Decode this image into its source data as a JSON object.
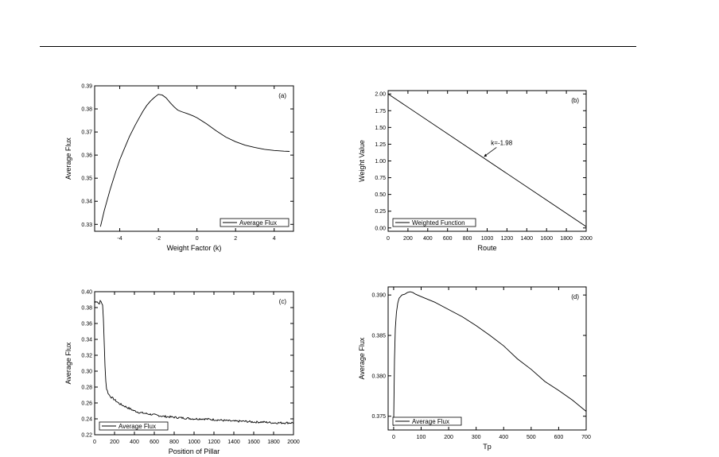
{
  "chart_data": [
    {
      "id": "a",
      "type": "line",
      "panel_label": "(a)",
      "xlabel": "Weight Factor (k)",
      "ylabel": "Average Flux",
      "xlim": [
        -5.3,
        5.0
      ],
      "ylim": [
        0.327,
        0.39
      ],
      "xticks": [
        -4,
        -2,
        0,
        2,
        4
      ],
      "xtick_labels": [
        "-4",
        "-2",
        "0",
        "2",
        "4"
      ],
      "yticks": [
        0.33,
        0.34,
        0.35,
        0.36,
        0.37,
        0.38,
        0.39
      ],
      "ytick_labels": [
        "0.33",
        "0.34",
        "0.35",
        "0.36",
        "0.37",
        "0.38",
        "0.39"
      ],
      "legend": {
        "position": "bottom-right",
        "entries": [
          "Average Flux"
        ]
      },
      "series": [
        {
          "name": "Average Flux",
          "x": [
            -5.0,
            -4.8,
            -4.5,
            -4.2,
            -4.0,
            -3.8,
            -3.5,
            -3.2,
            -3.0,
            -2.8,
            -2.6,
            -2.4,
            -2.2,
            -2.0,
            -1.8,
            -1.6,
            -1.4,
            -1.2,
            -1.0,
            -0.8,
            -0.5,
            -0.2,
            0.0,
            0.5,
            1.0,
            1.5,
            2.0,
            2.5,
            3.0,
            3.5,
            4.0,
            4.5,
            4.8
          ],
          "y": [
            0.329,
            0.336,
            0.345,
            0.353,
            0.358,
            0.362,
            0.368,
            0.373,
            0.376,
            0.379,
            0.3815,
            0.3835,
            0.385,
            0.3863,
            0.386,
            0.3848,
            0.3828,
            0.381,
            0.3795,
            0.3788,
            0.378,
            0.377,
            0.3762,
            0.3735,
            0.3705,
            0.3678,
            0.3658,
            0.3643,
            0.3633,
            0.3625,
            0.362,
            0.3617,
            0.3616
          ]
        }
      ]
    },
    {
      "id": "b",
      "type": "line",
      "panel_label": "(b)",
      "xlabel": "Route",
      "ylabel": "Weight Value",
      "xlim": [
        0,
        2000
      ],
      "ylim": [
        -0.05,
        2.05
      ],
      "xticks": [
        0,
        200,
        400,
        600,
        800,
        1000,
        1200,
        1400,
        1600,
        1800,
        2000
      ],
      "xtick_labels": [
        "0",
        "200",
        "400",
        "600",
        "800",
        "1000",
        "1200",
        "1400",
        "1600",
        "1800",
        "2000"
      ],
      "yticks": [
        0.0,
        0.25,
        0.5,
        0.75,
        1.0,
        1.25,
        1.5,
        1.75,
        2.0
      ],
      "ytick_labels": [
        "0.00",
        "0.25",
        "0.50",
        "0.75",
        "1.00",
        "1.25",
        "1.50",
        "1.75",
        "2.00"
      ],
      "legend": {
        "position": "bottom-left",
        "entries": [
          "Weighted Function"
        ]
      },
      "annotation": {
        "text": "k=-1.98",
        "x": 950,
        "y": 1.06
      },
      "series": [
        {
          "name": "Weighted Function",
          "x": [
            0,
            2000
          ],
          "y": [
            2.0,
            0.02
          ]
        }
      ]
    },
    {
      "id": "c",
      "type": "line",
      "panel_label": "(c)",
      "xlabel": "Position of Pillar",
      "ylabel": "Average Flux",
      "xlim": [
        0,
        2000
      ],
      "ylim": [
        0.22,
        0.4
      ],
      "xticks": [
        0,
        200,
        400,
        600,
        800,
        1000,
        1200,
        1400,
        1600,
        1800,
        2000
      ],
      "xtick_labels": [
        "0",
        "200",
        "400",
        "600",
        "800",
        "1000",
        "1200",
        "1400",
        "1600",
        "1800",
        "2000"
      ],
      "yticks": [
        0.22,
        0.24,
        0.26,
        0.28,
        0.3,
        0.32,
        0.34,
        0.36,
        0.38,
        0.4
      ],
      "ytick_labels": [
        "0.22",
        "0.24",
        "0.26",
        "0.28",
        "0.30",
        "0.32",
        "0.34",
        "0.36",
        "0.38",
        "0.40"
      ],
      "legend": {
        "position": "bottom-left",
        "entries": [
          "Average Flux"
        ]
      },
      "series": [
        {
          "name": "Average Flux",
          "x": [
            0,
            20,
            40,
            60,
            80,
            90,
            100,
            110,
            120,
            140,
            160,
            200,
            250,
            300,
            350,
            400,
            450,
            500,
            550,
            600,
            700,
            800,
            900,
            1000,
            1100,
            1200,
            1300,
            1400,
            1500,
            1600,
            1700,
            1800,
            1900,
            2000
          ],
          "y": [
            0.386,
            0.389,
            0.385,
            0.388,
            0.384,
            0.36,
            0.32,
            0.29,
            0.278,
            0.271,
            0.268,
            0.264,
            0.259,
            0.256,
            0.253,
            0.25,
            0.248,
            0.247,
            0.246,
            0.245,
            0.243,
            0.242,
            0.241,
            0.24,
            0.24,
            0.239,
            0.238,
            0.237,
            0.237,
            0.236,
            0.236,
            0.235,
            0.235,
            0.235
          ]
        }
      ]
    },
    {
      "id": "d",
      "type": "line",
      "panel_label": "(d)",
      "xlabel": "Tp",
      "ylabel": "Average Flux",
      "xlim": [
        -20,
        700
      ],
      "ylim": [
        0.3733,
        0.391
      ],
      "xticks": [
        0,
        100,
        200,
        300,
        400,
        500,
        600,
        700
      ],
      "xtick_labels": [
        "0",
        "100",
        "200",
        "300",
        "400",
        "500",
        "600",
        "700"
      ],
      "yticks": [
        0.375,
        0.38,
        0.385,
        0.39
      ],
      "ytick_labels": [
        "0.375",
        "0.380",
        "0.385",
        "0.390"
      ],
      "legend": {
        "position": "bottom-left",
        "entries": [
          "Average Flux"
        ]
      },
      "series": [
        {
          "name": "Average Flux",
          "x": [
            0,
            3,
            6,
            10,
            15,
            20,
            30,
            40,
            50,
            60,
            70,
            80,
            100,
            150,
            200,
            250,
            300,
            350,
            400,
            450,
            500,
            550,
            600,
            650,
            700
          ],
          "y": [
            0.3738,
            0.382,
            0.3858,
            0.3878,
            0.389,
            0.3896,
            0.39,
            0.3901,
            0.3903,
            0.3904,
            0.3903,
            0.3901,
            0.3898,
            0.3891,
            0.3882,
            0.3873,
            0.3862,
            0.385,
            0.3837,
            0.3821,
            0.3808,
            0.3793,
            0.3782,
            0.377,
            0.3756
          ]
        }
      ]
    }
  ]
}
